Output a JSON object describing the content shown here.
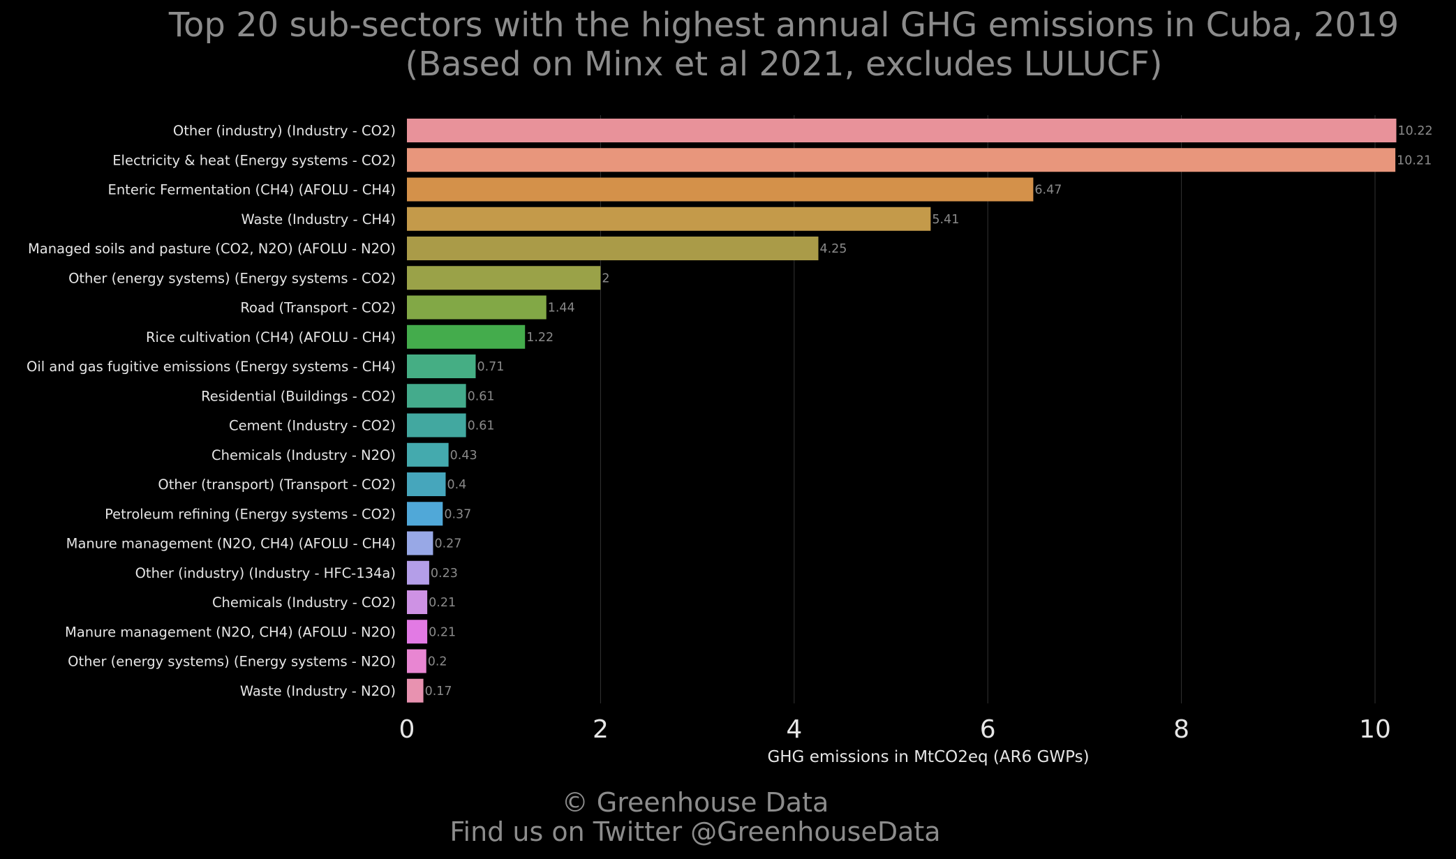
{
  "title": {
    "line1": "Top 20 sub-sectors with the highest annual GHG emissions in Cuba, 2019",
    "line2": "(Based on Minx et al 2021, excludes LULUCF)"
  },
  "footer": {
    "line1": "© Greenhouse Data",
    "line2": "Find us on Twitter @GreenhouseData"
  },
  "colors": {
    "background": "#000000",
    "grid": "#333333",
    "title": "#8c8c8c",
    "label": "#e6e6e6",
    "value_label": "#8a8a8a"
  },
  "chart_data": {
    "type": "bar",
    "orientation": "horizontal",
    "title": "Top 20 sub-sectors with the highest annual GHG emissions in Cuba, 2019",
    "subtitle": "(Based on Minx et al 2021, excludes LULUCF)",
    "xlabel": "GHG emissions in MtCO2eq (AR6 GWPs)",
    "ylabel": "",
    "xlim": [
      0,
      10.6
    ],
    "xticks": [
      0,
      2,
      4,
      6,
      8,
      10
    ],
    "xtick_labels": [
      "0",
      "2",
      "4",
      "6",
      "8",
      "10"
    ],
    "grid": "vertical",
    "categories": [
      "Other (industry) (Industry - CO2)",
      "Electricity & heat (Energy systems - CO2)",
      "Enteric Fermentation (CH4) (AFOLU - CH4)",
      "Waste (Industry - CH4)",
      "Managed soils and pasture (CO2, N2O) (AFOLU - N2O)",
      "Other (energy systems) (Energy systems - CO2)",
      "Road (Transport - CO2)",
      "Rice cultivation (CH4) (AFOLU - CH4)",
      "Oil and gas fugitive emissions (Energy systems - CH4)",
      "Residential (Buildings - CO2)",
      "Cement (Industry - CO2)",
      "Chemicals (Industry - N2O)",
      "Other (transport) (Transport - CO2)",
      "Petroleum refining (Energy systems - CO2)",
      "Manure management (N2O, CH4) (AFOLU - CH4)",
      "Other (industry) (Industry - HFC-134a)",
      "Chemicals (Industry - CO2)",
      "Manure management (N2O, CH4) (AFOLU - N2O)",
      "Other (energy systems) (Energy systems - N2O)",
      "Waste (Industry - N2O)"
    ],
    "values": [
      10.22,
      10.21,
      6.47,
      5.41,
      4.25,
      2,
      1.44,
      1.22,
      0.71,
      0.61,
      0.61,
      0.43,
      0.4,
      0.37,
      0.27,
      0.23,
      0.21,
      0.21,
      0.2,
      0.17
    ],
    "value_labels": [
      "10.22",
      "10.21",
      "6.47",
      "5.41",
      "4.25",
      "2",
      "1.44",
      "1.22",
      "0.71",
      "0.61",
      "0.61",
      "0.43",
      "0.4",
      "0.37",
      "0.27",
      "0.23",
      "0.21",
      "0.21",
      "0.2",
      "0.17"
    ],
    "bar_colors": [
      "#e8929a",
      "#e8967c",
      "#d4914a",
      "#c49a4a",
      "#aa9b48",
      "#9aa248",
      "#82a846",
      "#44ac4c",
      "#45ae84",
      "#44ab8c",
      "#42a8a0",
      "#44aaae",
      "#46a6bc",
      "#50a8d8",
      "#98a8e6",
      "#b49ee8",
      "#ce92e4",
      "#e27ae4",
      "#e886d2",
      "#e892b0"
    ]
  }
}
